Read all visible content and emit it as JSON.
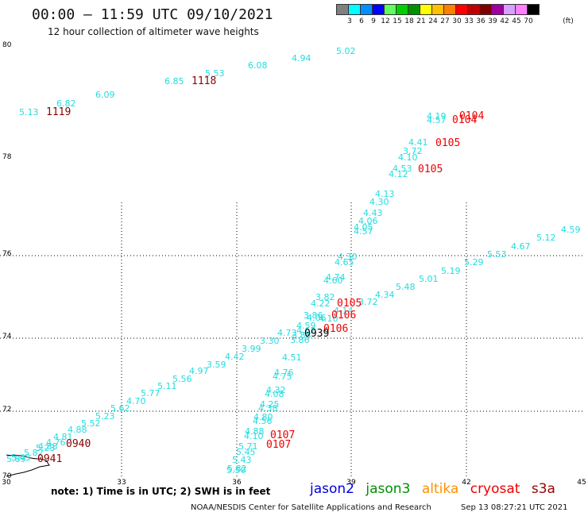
{
  "header": {
    "title": "00:00 – 11:59 UTC 09/10/2021",
    "subtitle": "12 hour collection of altimeter wave heights"
  },
  "legend": {
    "labels": [
      "3",
      "6",
      "9",
      "12",
      "15",
      "18",
      "21",
      "24",
      "27",
      "30",
      "33",
      "36",
      "39",
      "42",
      "45",
      "70"
    ],
    "unit": "(ft)",
    "colors": [
      "#808080",
      "#00ffff",
      "#0090ff",
      "#0000ff",
      "#60ff60",
      "#00d000",
      "#009000",
      "#ffff00",
      "#ffc000",
      "#ff8000",
      "#ff0000",
      "#c00000",
      "#800000",
      "#a000a0",
      "#d8a0ff",
      "#ff80ff",
      "#000000"
    ]
  },
  "axes": {
    "lon_ticks": [
      "30",
      "33",
      "36",
      "39",
      "42",
      "45"
    ],
    "lat_ticks": [
      "80",
      "78",
      "76",
      "74",
      "72",
      "70"
    ]
  },
  "map_data": {
    "wave_color": "#22dde0",
    "time_color_red": "#ee0000",
    "time_color_dark": "#8a0000",
    "time_color_black": "#000000",
    "waves": [
      [
        "5.13",
        24,
        145
      ],
      [
        "6.82",
        71,
        134
      ],
      [
        "6.09",
        120,
        123
      ],
      [
        "6.85",
        207,
        106
      ],
      [
        "5.53",
        258,
        96
      ],
      [
        "6.08",
        312,
        86
      ],
      [
        "4.94",
        367,
        77
      ],
      [
        "5.02",
        423,
        68
      ],
      [
        "4.19",
        537,
        150
      ],
      [
        "4.57",
        537,
        155
      ],
      [
        "4.41",
        514,
        183
      ],
      [
        "3.72",
        507,
        194
      ],
      [
        "4.10",
        501,
        202
      ],
      [
        "4.53",
        494,
        216
      ],
      [
        "4.12",
        489,
        223
      ],
      [
        "4.13",
        472,
        248
      ],
      [
        "4.30",
        465,
        258
      ],
      [
        "4.43",
        457,
        272
      ],
      [
        "4.06",
        451,
        282
      ],
      [
        "4.05",
        445,
        290
      ],
      [
        "4.57",
        445,
        295
      ],
      [
        "4.30",
        425,
        327
      ],
      [
        "4.65",
        421,
        334
      ],
      [
        "4.74",
        410,
        353
      ],
      [
        "4.60",
        407,
        357
      ],
      [
        "3.82",
        397,
        378
      ],
      [
        "4.22",
        391,
        386
      ],
      [
        "3.72",
        451,
        384
      ],
      [
        "4.14",
        420,
        395
      ],
      [
        "3.86",
        382,
        401
      ],
      [
        "4.06",
        386,
        404
      ],
      [
        "4.10",
        401,
        405
      ],
      [
        "4.59",
        373,
        414
      ],
      [
        "4.62",
        373,
        420
      ],
      [
        "3.88",
        367,
        426
      ],
      [
        "3.86",
        365,
        432
      ],
      [
        "4.73",
        349,
        423
      ],
      [
        "3.30",
        327,
        433
      ],
      [
        "3.99",
        304,
        443
      ],
      [
        "4.42",
        283,
        453
      ],
      [
        "3.59",
        260,
        463
      ],
      [
        "4.97",
        238,
        471
      ],
      [
        "5.56",
        217,
        481
      ],
      [
        "5.11",
        198,
        490
      ],
      [
        "5.77",
        177,
        499
      ],
      [
        "4.70",
        159,
        509
      ],
      [
        "5.62",
        139,
        518
      ],
      [
        "5.23",
        120,
        528
      ],
      [
        "5.52",
        102,
        537
      ],
      [
        "4.88",
        85,
        545
      ],
      [
        "4.81",
        67,
        554
      ],
      [
        "4.76",
        58,
        561
      ],
      [
        "4.88",
        48,
        566
      ],
      [
        "5.23",
        45,
        568
      ],
      [
        "5.82",
        30,
        574
      ],
      [
        "5.43",
        14,
        580
      ],
      [
        "5.89",
        8,
        582
      ],
      [
        "4.51",
        355,
        454
      ],
      [
        "4.76",
        345,
        473
      ],
      [
        "4.75",
        343,
        478
      ],
      [
        "4.32",
        335,
        495
      ],
      [
        "4.08",
        333,
        500
      ],
      [
        "4.25",
        327,
        513
      ],
      [
        "4.38",
        325,
        518
      ],
      [
        "4.80",
        319,
        529
      ],
      [
        "4.56",
        318,
        534
      ],
      [
        "4.88",
        308,
        547
      ],
      [
        "4.10",
        307,
        553
      ],
      [
        "5.71",
        300,
        566
      ],
      [
        "5.45",
        297,
        573
      ],
      [
        "5.43",
        292,
        583
      ],
      [
        "5.82",
        286,
        594
      ],
      [
        "5.50",
        285,
        596
      ],
      [
        "5.29",
        584,
        334
      ],
      [
        "5.53",
        613,
        324
      ],
      [
        "4.67",
        643,
        314
      ],
      [
        "5.12",
        675,
        303
      ],
      [
        "4.59",
        706,
        293
      ],
      [
        "5.19",
        555,
        345
      ],
      [
        "5.01",
        527,
        355
      ],
      [
        "5.48",
        498,
        365
      ],
      [
        "4.34",
        472,
        375
      ]
    ],
    "times": [
      [
        "1119",
        58,
        145,
        "dark"
      ],
      [
        "1118",
        241,
        106,
        "dark"
      ],
      [
        "0104",
        578,
        150,
        "red"
      ],
      [
        "0104",
        569,
        155,
        "red"
      ],
      [
        "0105",
        548,
        184,
        "red"
      ],
      [
        "0105",
        526,
        217,
        "red"
      ],
      [
        "0105",
        424,
        386,
        "red"
      ],
      [
        "0106",
        417,
        401,
        "red"
      ],
      [
        "0106",
        407,
        418,
        "red"
      ],
      [
        "0939",
        383,
        424,
        "black"
      ],
      [
        "0107",
        340,
        552,
        "red"
      ],
      [
        "0107",
        335,
        564,
        "red"
      ],
      [
        "0940",
        83,
        563,
        "dark"
      ],
      [
        "0941",
        47,
        582,
        "dark"
      ]
    ]
  },
  "footer": {
    "note": "note: 1) Time is in UTC; 2) SWH is in feet",
    "satellites": [
      {
        "name": "jason2",
        "color": "#0000dd"
      },
      {
        "name": "jason3",
        "color": "#009000"
      },
      {
        "name": "altika",
        "color": "#ff9000"
      },
      {
        "name": "cryosat",
        "color": "#ee0000"
      },
      {
        "name": "s3a",
        "color": "#990000"
      }
    ],
    "credit": "NOAA/NESDIS Center for Satellite Applications and Research",
    "timestamp": "Sep 13 08:27:21 UTC 2021"
  }
}
